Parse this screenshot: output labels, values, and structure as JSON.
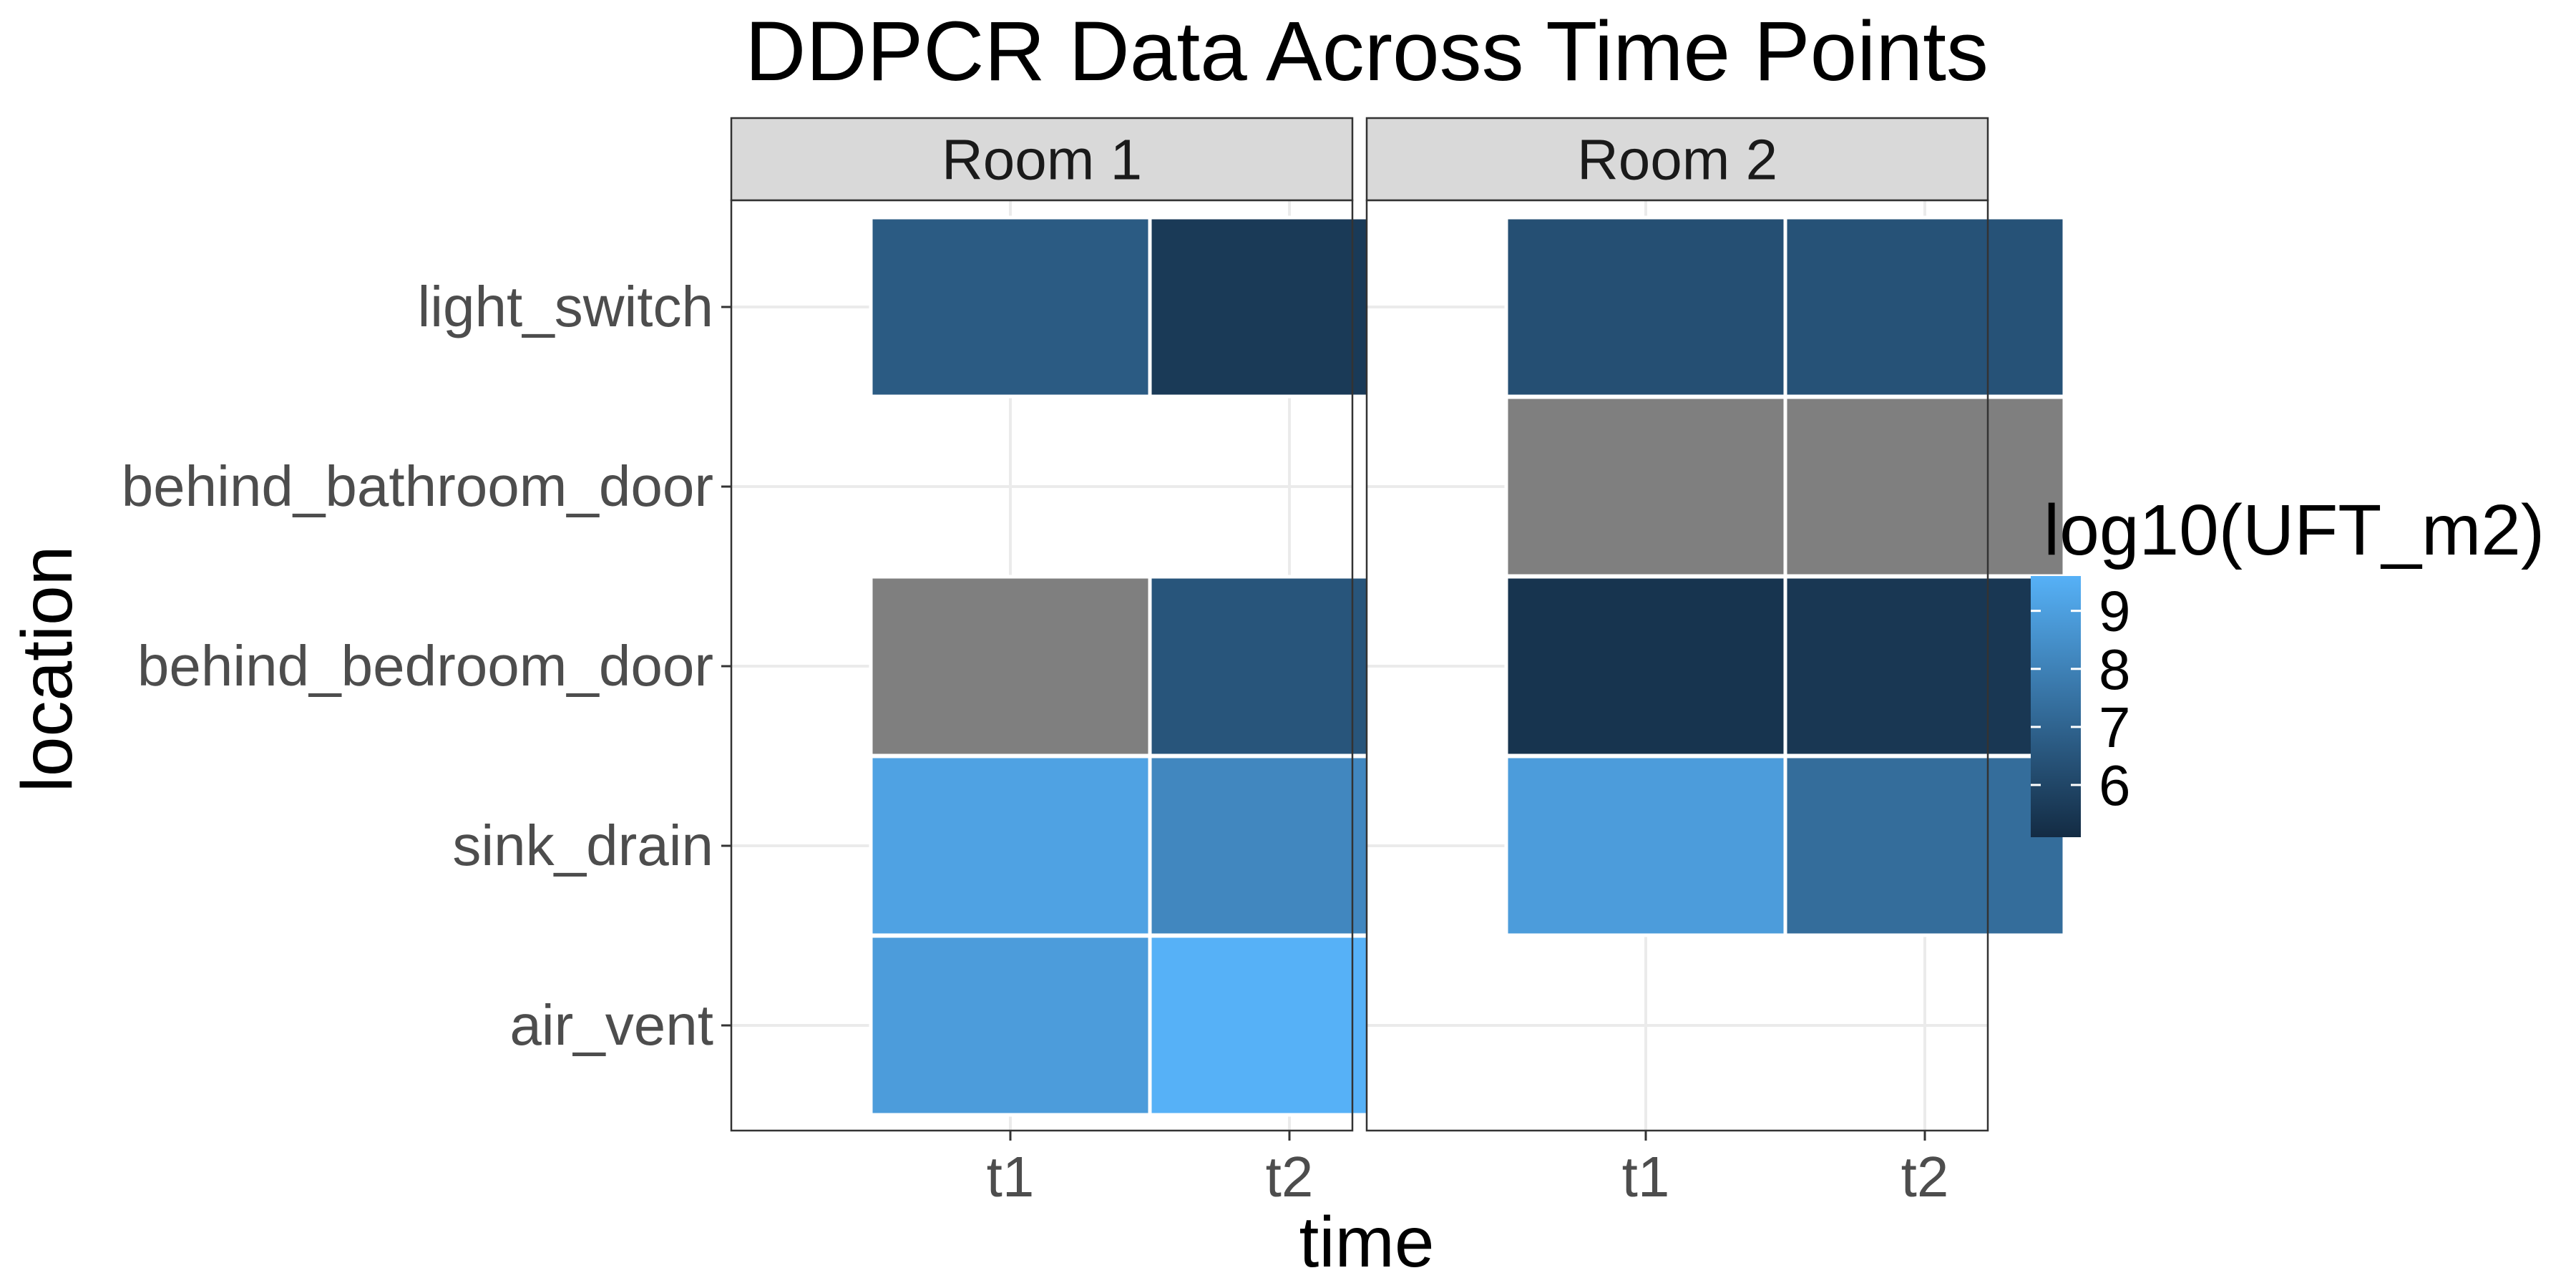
{
  "chart_data": {
    "type": "heatmap",
    "title": "DDPCR Data Across Time Points",
    "xlabel": "time",
    "ylabel": "location",
    "x_categories": [
      "t1",
      "t2"
    ],
    "y_categories": [
      "air_vent",
      "sink_drain",
      "behind_bedroom_door",
      "behind_bathroom_door",
      "light_switch"
    ],
    "facets": [
      {
        "label": "Room 1",
        "cells": [
          {
            "x": "t1",
            "y": "light_switch",
            "value": 6.7
          },
          {
            "x": "t2",
            "y": "light_switch",
            "value": 5.6
          },
          {
            "x": "t1",
            "y": "behind_bedroom_door",
            "value": null
          },
          {
            "x": "t2",
            "y": "behind_bedroom_door",
            "value": 6.5
          },
          {
            "x": "t1",
            "y": "sink_drain",
            "value": 9.1
          },
          {
            "x": "t2",
            "y": "sink_drain",
            "value": 8.2
          },
          {
            "x": "t1",
            "y": "air_vent",
            "value": 8.9
          },
          {
            "x": "t2",
            "y": "air_vent",
            "value": 9.6
          }
        ]
      },
      {
        "label": "Room 2",
        "cells": [
          {
            "x": "t1",
            "y": "light_switch",
            "value": 6.3
          },
          {
            "x": "t2",
            "y": "light_switch",
            "value": 6.4
          },
          {
            "x": "t1",
            "y": "behind_bathroom_door",
            "value": null
          },
          {
            "x": "t2",
            "y": "behind_bathroom_door",
            "value": null
          },
          {
            "x": "t1",
            "y": "behind_bedroom_door",
            "value": 5.4
          },
          {
            "x": "t2",
            "y": "behind_bedroom_door",
            "value": 5.5
          },
          {
            "x": "t1",
            "y": "sink_drain",
            "value": 8.9
          },
          {
            "x": "t2",
            "y": "sink_drain",
            "value": 7.3
          }
        ]
      }
    ],
    "legend": {
      "title": "log10(UFT_m2)",
      "ticks": [
        6,
        7,
        8,
        9
      ],
      "range": [
        5.1,
        9.6
      ],
      "low_color": "#132B43",
      "high_color": "#56B1F7",
      "na_color": "#7F7F7F",
      "placement": "right"
    },
    "grid": true
  }
}
